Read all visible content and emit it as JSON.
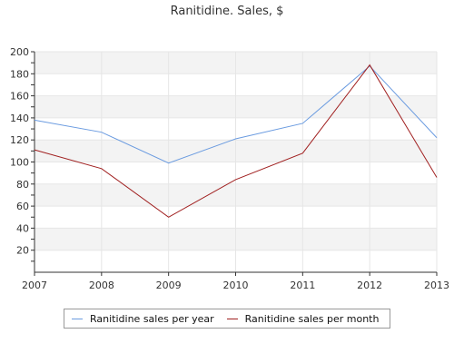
{
  "chart_data": {
    "type": "line",
    "title": "Ranitidine. Sales, $",
    "xlabel": "",
    "ylabel": "",
    "x": [
      "2007",
      "2008",
      "2009",
      "2010",
      "2011",
      "2012",
      "2013"
    ],
    "ylim": [
      0,
      200
    ],
    "yticks": [
      20,
      40,
      60,
      80,
      100,
      120,
      140,
      160,
      180,
      200
    ],
    "grid": true,
    "legend_position": "bottom",
    "series": [
      {
        "name": "Ranitidine sales per year",
        "color": "#6a9be0",
        "values": [
          138,
          127,
          99,
          121,
          135,
          187,
          122
        ]
      },
      {
        "name": "Ranitidine sales per month",
        "color": "#a01f1f",
        "values": [
          111,
          94,
          50,
          84,
          108,
          188,
          86
        ]
      }
    ]
  }
}
